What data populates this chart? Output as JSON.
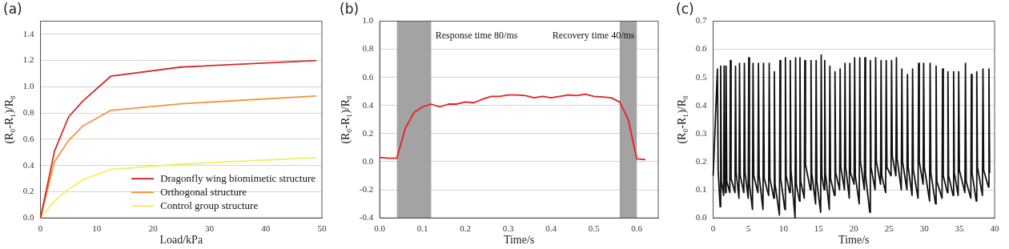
{
  "chart_data": [
    {
      "type": "line",
      "title": "(a)",
      "xlabel": "Load/kPa",
      "ylabel": "(R₀-R₁)/R₀",
      "xlim": [
        0,
        50
      ],
      "xticks": [
        0,
        10,
        20,
        30,
        40,
        50
      ],
      "ylim": [
        0,
        1.5
      ],
      "yticks": [
        {
          "value": 0,
          "label": "0.0"
        },
        {
          "value": 0.2,
          "label": "0.2"
        },
        {
          "value": 0.4,
          "label": "0.4"
        },
        {
          "value": 0.6,
          "label": "0.6"
        },
        {
          "value": 0.8,
          "label": "0.8"
        },
        {
          "value": 1,
          "label": "1.0"
        },
        {
          "value": 1.2,
          "label": "1.2"
        },
        {
          "value": 1.4,
          "label": "1.4"
        }
      ],
      "grid": "y",
      "legend": "bottom right",
      "marker": "none",
      "line_style": "solid",
      "series": [
        {
          "name": "Dragonfly wing biomimetic structure",
          "color": "#d42a2a",
          "x": [
            0,
            2.5,
            5,
            7.5,
            12.5,
            25,
            49
          ],
          "values": [
            0,
            0.51,
            0.77,
            0.89,
            1.08,
            1.15,
            1.2
          ]
        },
        {
          "name": "Orthogonal structure",
          "color": "#f5943c",
          "x": [
            0,
            2.5,
            5,
            7.5,
            12.5,
            25,
            49
          ],
          "values": [
            0,
            0.43,
            0.59,
            0.7,
            0.82,
            0.87,
            0.93
          ]
        },
        {
          "name": "Control group structure",
          "color": "#f4ef5a",
          "x": [
            0,
            2.5,
            5,
            7.5,
            12.5,
            25,
            49
          ],
          "values": [
            0,
            0.13,
            0.22,
            0.29,
            0.37,
            0.41,
            0.46
          ]
        }
      ]
    },
    {
      "type": "line",
      "title": "(b)",
      "xlabel": "Time/s",
      "ylabel": "(R₀-R₁)/R₀",
      "xlim": [
        0,
        0.65
      ],
      "xticks": [
        {
          "value": 0,
          "label": "0.0"
        },
        0.1,
        0.2,
        0.3,
        0.4,
        0.5,
        0.6
      ],
      "ylim": [
        -0.4,
        1
      ],
      "yticks": [
        -0.4,
        -0.2,
        {
          "value": 0,
          "label": "0.0"
        },
        0.2,
        0.4,
        0.6,
        0.8,
        {
          "value": 1,
          "label": "1.0"
        }
      ],
      "grid": "y",
      "marker": "none",
      "line_style": "solid",
      "bands": [
        {
          "axis": "x",
          "from": 0.04,
          "to": 0.12,
          "color": "#a3a3a3"
        },
        {
          "axis": "x",
          "from": 0.56,
          "to": 0.6,
          "color": "#a3a3a3"
        }
      ],
      "annotations": [
        "Response time 80/ms",
        "Recovery time 40/ms"
      ],
      "series": [
        {
          "color": "#ee1c1c",
          "x": [
            0,
            0.02,
            0.04,
            0.06,
            0.08,
            0.1,
            0.12,
            0.14,
            0.16,
            0.18,
            0.2,
            0.22,
            0.24,
            0.26,
            0.28,
            0.3,
            0.32,
            0.34,
            0.36,
            0.38,
            0.4,
            0.42,
            0.44,
            0.46,
            0.48,
            0.5,
            0.52,
            0.54,
            0.56,
            0.58,
            0.6,
            0.62
          ],
          "values": [
            0.03,
            0.025,
            0.025,
            0.24,
            0.35,
            0.39,
            0.41,
            0.39,
            0.41,
            0.41,
            0.425,
            0.42,
            0.445,
            0.465,
            0.465,
            0.475,
            0.475,
            0.47,
            0.455,
            0.465,
            0.455,
            0.465,
            0.475,
            0.47,
            0.48,
            0.465,
            0.46,
            0.455,
            0.425,
            0.3,
            0.02,
            0.015
          ]
        }
      ]
    },
    {
      "type": "line",
      "title": "(c)",
      "xlabel": "Time/s",
      "ylabel": "(R₀-R₁)/R₀",
      "xlim": [
        0,
        40
      ],
      "xticks": [
        0,
        5,
        10,
        15,
        20,
        25,
        30,
        35,
        40
      ],
      "ylim": [
        0,
        0.7
      ],
      "yticks": [
        {
          "value": 0,
          "label": "0.0"
        },
        0.1,
        0.2,
        0.3,
        0.4,
        0.5,
        0.6,
        0.7
      ],
      "grid": "y",
      "marker": "none",
      "line_style": "solid",
      "series": [
        {
          "color": "#111111",
          "x": [
            0,
            0.61,
            0.71,
            0.99,
            1.07,
            1.17,
            1.49,
            1.57,
            1.67,
            1.76,
            1.84,
            1.94,
            2.37,
            2.45,
            2.55,
            3.1,
            3.18,
            3.28,
            3.67,
            3.75,
            3.85,
            4.36,
            4.44,
            4.54,
            4.98,
            5.06,
            5.16,
            5.59,
            5.67,
            5.77,
            6.36,
            6.44,
            6.54,
            7.08,
            7.16,
            7.26,
            7.89,
            7.97,
            8.07,
            8.62,
            8.7,
            8.8,
            9.42,
            9.5,
            9.6,
            10.19,
            10.27,
            10.37,
            10.88,
            10.96,
            11.06,
            11.64,
            11.72,
            11.82,
            12.26,
            12.34,
            12.44,
            12.95,
            13.03,
            13.13,
            13.83,
            13.91,
            14.01,
            14.56,
            14.64,
            14.74,
            15.28,
            15.36,
            15.46,
            15.78,
            15.86,
            15.96,
            16.51,
            16.59,
            16.69,
            17.24,
            17.32,
            17.42,
            17.97,
            18.05,
            18.15,
            18.66,
            18.74,
            18.84,
            19.35,
            19.43,
            19.53,
            20.03,
            20.11,
            20.21,
            20.76,
            20.84,
            20.94,
            21.49,
            21.57,
            21.67,
            22.26,
            22.34,
            22.44,
            23.02,
            23.1,
            23.2,
            23.79,
            23.87,
            23.97,
            24.52,
            24.6,
            24.7,
            25.28,
            25.36,
            25.46,
            25.97,
            26.05,
            26.15,
            26.74,
            26.82,
            26.92,
            27.54,
            27.62,
            27.72,
            28.27,
            28.35,
            28.45,
            29.12,
            29.2,
            29.3,
            29.84,
            29.92,
            30.02,
            30.76,
            30.84,
            30.94,
            31.61,
            31.69,
            31.79,
            32.53,
            32.61,
            32.71,
            33.29,
            33.37,
            33.47,
            34.1,
            34.18,
            34.28,
            34.82,
            34.9,
            35,
            35.78,
            35.86,
            35.96,
            36.62,
            36.7,
            36.8,
            37.39,
            37.47,
            37.57,
            38.27,
            38.35,
            38.45,
            39.12,
            39.2,
            39.3
          ],
          "values": [
            0.15,
            0.53,
            0.17,
            0.04,
            0.54,
            0.13,
            0.08,
            0.54,
            0.14,
            0.09,
            0.54,
            0.13,
            0.09,
            0.56,
            0.14,
            0.09,
            0.54,
            0.16,
            0.07,
            0.55,
            0.15,
            0.09,
            0.55,
            0.16,
            0.07,
            0.57,
            0.12,
            0.03,
            0.55,
            0.15,
            0.09,
            0.55,
            0.15,
            0.03,
            0.55,
            0.14,
            0.08,
            0.55,
            0.14,
            0.07,
            0.52,
            0.12,
            0.01,
            0.56,
            0.14,
            0.03,
            0.57,
            0.15,
            0.09,
            0.56,
            0.17,
            0,
            0.57,
            0.12,
            0.06,
            0.57,
            0.13,
            0.07,
            0.56,
            0.19,
            0.1,
            0.56,
            0.16,
            0.05,
            0.56,
            0.13,
            0.02,
            0.58,
            0.15,
            0.1,
            0.56,
            0.16,
            0.03,
            0.54,
            0.14,
            0.08,
            0.52,
            0.16,
            0.1,
            0.53,
            0.18,
            0.1,
            0.55,
            0.18,
            0.07,
            0.55,
            0.16,
            0.12,
            0.57,
            0.15,
            0.05,
            0.57,
            0.2,
            0.1,
            0.57,
            0.15,
            0.02,
            0.56,
            0.18,
            0.1,
            0.57,
            0.2,
            0.12,
            0.56,
            0.15,
            0.09,
            0.56,
            0.18,
            0.15,
            0.56,
            0.22,
            0.15,
            0.57,
            0.21,
            0.1,
            0.53,
            0.2,
            0.1,
            0.51,
            0.18,
            0.08,
            0.53,
            0.17,
            0.07,
            0.55,
            0.2,
            0.12,
            0.55,
            0.18,
            0.06,
            0.55,
            0.16,
            0.05,
            0.54,
            0.13,
            0.07,
            0.53,
            0.15,
            0.09,
            0.52,
            0.15,
            0.08,
            0.52,
            0.16,
            0.08,
            0.52,
            0.17,
            0.09,
            0.55,
            0.13,
            0.07,
            0.51,
            0.16,
            0.06,
            0.52,
            0.18,
            0.08,
            0.53,
            0.17,
            0.11,
            0.53,
            0.16
          ]
        }
      ]
    }
  ]
}
